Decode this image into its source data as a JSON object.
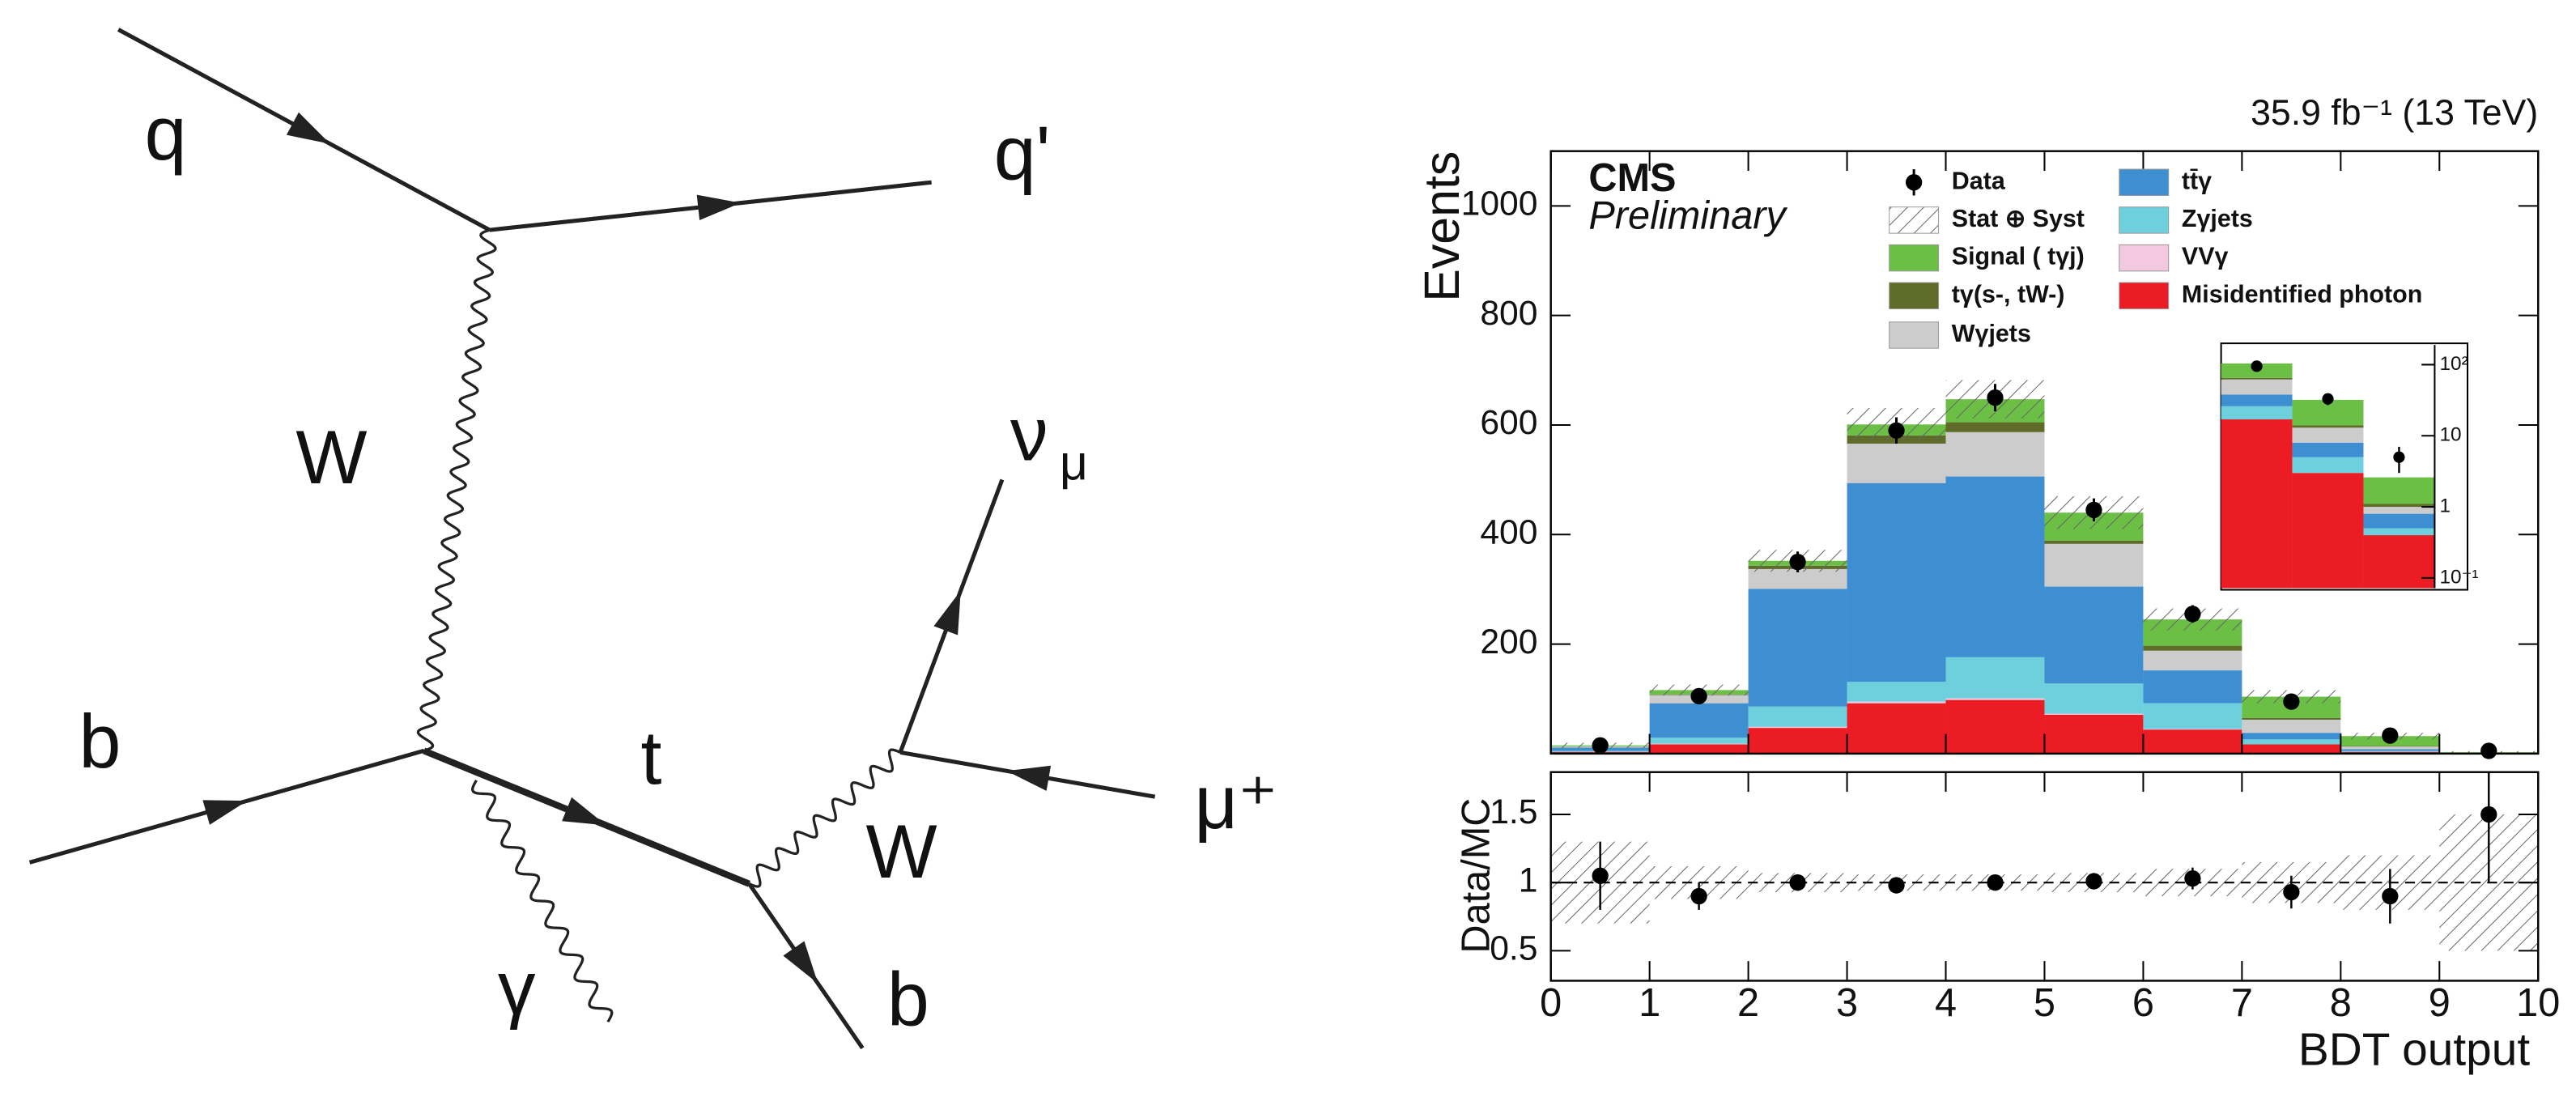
{
  "diagram": {
    "labels": [
      "q",
      "q'",
      "W",
      "b",
      "t",
      "W",
      "ν",
      "μ",
      "μ⁺",
      "γ",
      "b"
    ]
  },
  "chart_data": {
    "type": "histogram",
    "stacked": true,
    "lumi": "35.9 fb⁻¹ (13 TeV)",
    "experiment": "CMS",
    "status": "Preliminary",
    "ylabel": "Events",
    "xlabel": "BDT output",
    "bins": [
      0,
      1,
      2,
      3,
      4,
      5,
      6,
      7,
      8,
      9,
      10
    ],
    "xlim": [
      0,
      10
    ],
    "xticks": [
      0,
      1,
      2,
      3,
      4,
      5,
      6,
      7,
      8,
      9,
      10
    ],
    "ylim": [
      0,
      1100
    ],
    "yticks": [
      200,
      400,
      600,
      800,
      1000
    ],
    "series": [
      {
        "name": "Misidentified photon",
        "color": "#ec1c24",
        "values": [
          3,
          17,
          47,
          92,
          98,
          71,
          44,
          17,
          3,
          0.4
        ]
      },
      {
        "name": "VVγ",
        "color": "#f2c9e1",
        "values": [
          0,
          1,
          2,
          3,
          3,
          2,
          1,
          0,
          0,
          0
        ]
      },
      {
        "name": "Zγjets",
        "color": "#6ecfdd",
        "values": [
          2,
          11,
          37,
          36,
          75,
          55,
          47,
          9,
          2,
          0.1
        ]
      },
      {
        "name": "tt̄γ",
        "color": "#3d8fd1",
        "values": [
          6,
          63,
          215,
          363,
          330,
          177,
          60,
          12,
          3,
          0.3
        ]
      },
      {
        "name": "Wγjets",
        "color": "#cccccc",
        "values": [
          2,
          15,
          36,
          72,
          81,
          78,
          36,
          24,
          5,
          0.2
        ]
      },
      {
        "name": "tγ(s-, tW-)",
        "color": "#5e6b29",
        "values": [
          0,
          1,
          6,
          15,
          18,
          6,
          9,
          3,
          1,
          0.1
        ]
      },
      {
        "name": "Signal ( tγj)",
        "color": "#6bbf45",
        "values": [
          2,
          8,
          9,
          20,
          42,
          51,
          48,
          39,
          18,
          1.5
        ]
      }
    ],
    "data": {
      "name": "Data",
      "color": "#000000",
      "values": [
        15,
        105,
        350,
        590,
        650,
        445,
        255,
        95,
        33,
        5
      ],
      "errors": [
        4,
        10,
        19,
        24,
        25,
        21,
        16,
        10,
        6,
        2
      ]
    },
    "uncertainty": {
      "name": "Stat ⊕ Syst",
      "errors": [
        5,
        10,
        20,
        30,
        35,
        30,
        20,
        12,
        6,
        2
      ]
    },
    "inset": {
      "log": true,
      "xlim": [
        7,
        10
      ],
      "ylim": [
        0.072,
        170
      ],
      "yticks": [
        {
          "value": 0.1,
          "label": "10⁻¹"
        },
        1,
        10,
        {
          "value": 100,
          "label": "10²"
        }
      ]
    },
    "ratio": {
      "ylabel": "Data/MC",
      "ylim": [
        0.28,
        1.81
      ],
      "yticks": [
        0.5,
        1,
        1.5
      ],
      "reference": 1,
      "values": [
        1.05,
        0.9,
        1.0,
        0.98,
        1.0,
        1.01,
        1.03,
        0.93,
        0.9,
        1.5
      ],
      "errors": [
        0.25,
        0.1,
        0.06,
        0.05,
        0.05,
        0.06,
        0.08,
        0.12,
        0.2,
        0.5
      ],
      "uncertainty": [
        0.3,
        0.12,
        0.07,
        0.06,
        0.06,
        0.07,
        0.1,
        0.15,
        0.2,
        0.5
      ]
    }
  }
}
